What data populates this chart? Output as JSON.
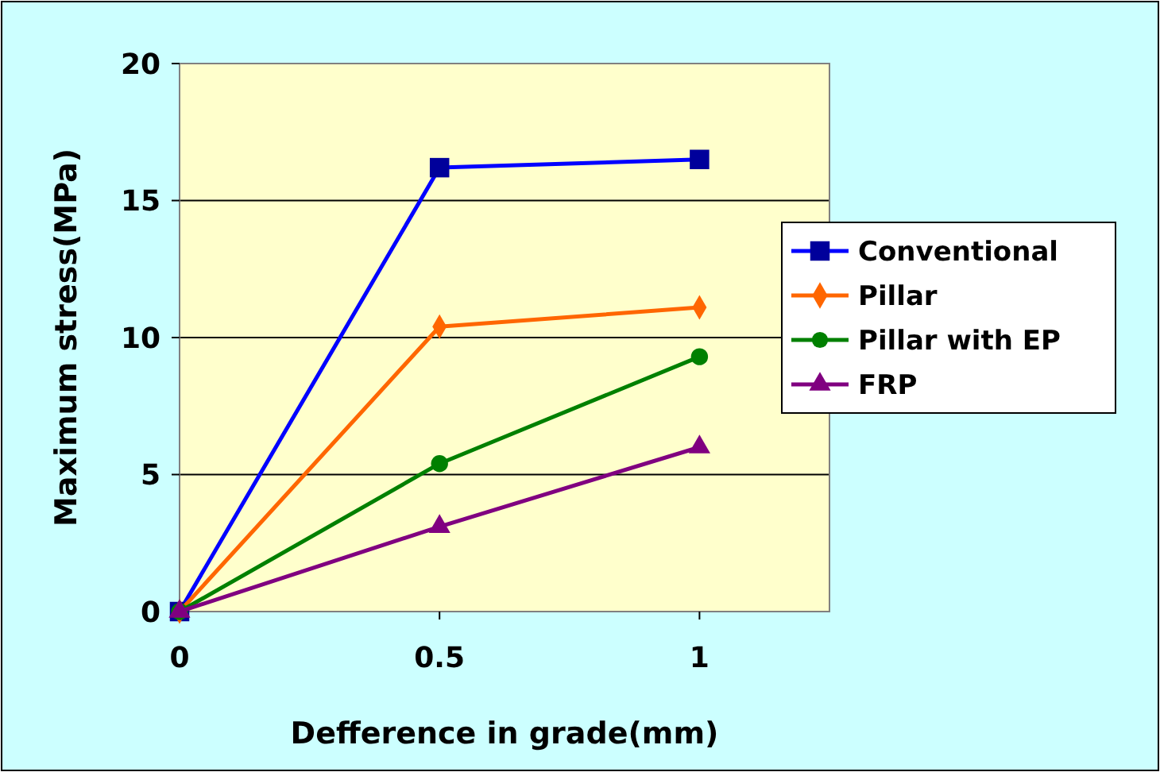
{
  "chart_data": {
    "type": "line",
    "xlabel": "Defference in grade(mm)",
    "ylabel": "Maximum stress(MPa)",
    "x": [
      0,
      0.5,
      1
    ],
    "xlim": [
      0,
      1.25
    ],
    "xticks": [
      0,
      0.5,
      1
    ],
    "ylim": [
      0,
      20
    ],
    "yticks": [
      0,
      5,
      10,
      15,
      20
    ],
    "grid": "y",
    "legend": "right",
    "series": [
      {
        "name": "Conventional",
        "color": "#0000ff",
        "marker": "square",
        "values": [
          0,
          16.2,
          16.5
        ]
      },
      {
        "name": "Pillar",
        "color": "#ff6600",
        "marker": "diamond",
        "values": [
          0,
          10.4,
          11.1
        ]
      },
      {
        "name": "Pillar with EP",
        "color": "#008000",
        "marker": "circle",
        "values": [
          0,
          5.4,
          9.3
        ]
      },
      {
        "name": "FRP",
        "color": "#800080",
        "marker": "triangle",
        "values": [
          0,
          3.1,
          6.0
        ]
      }
    ]
  }
}
